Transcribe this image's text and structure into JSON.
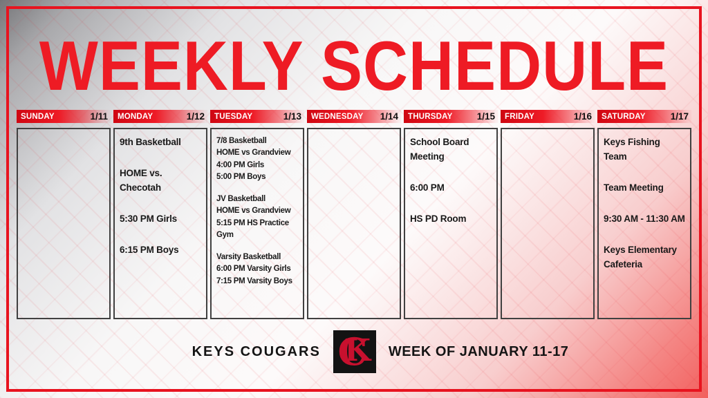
{
  "title": "WEEKLY SCHEDULE",
  "colors": {
    "accent_red": "#ee1b24",
    "header_bar_red": "#e8131f",
    "logo_red": "#c8102e",
    "text_dark": "#191919"
  },
  "days": [
    {
      "name": "SUNDAY",
      "date": "1/11",
      "events": []
    },
    {
      "name": "MONDAY",
      "date": "1/12",
      "events": [
        [
          "9th Basketball"
        ],
        [
          "HOME vs. Checotah"
        ],
        [
          "5:30 PM Girls"
        ],
        [
          "6:15 PM Boys"
        ]
      ]
    },
    {
      "name": "TUESDAY",
      "date": "1/13",
      "events": [
        [
          "7/8 Basketball",
          "HOME vs Grandview",
          "4:00 PM Girls",
          "5:00 PM Boys"
        ],
        [
          "JV Basketball",
          "HOME vs Grandview",
          "5:15 PM HS Practice Gym"
        ],
        [
          "Varsity Basketball",
          "6:00 PM Varsity Girls",
          "7:15 PM Varsity Boys"
        ]
      ]
    },
    {
      "name": "WEDNESDAY",
      "date": "1/14",
      "events": []
    },
    {
      "name": "THURSDAY",
      "date": "1/15",
      "events": [
        [
          "School Board Meeting"
        ],
        [
          "6:00 PM"
        ],
        [
          "HS PD Room"
        ]
      ]
    },
    {
      "name": "FRIDAY",
      "date": "1/16",
      "events": []
    },
    {
      "name": "SATURDAY",
      "date": "1/17",
      "events": [
        [
          "Keys Fishing Team"
        ],
        [
          "Team Meeting"
        ],
        [
          "9:30 AM - 11:30 AM"
        ],
        [
          "Keys Elementary Cafeteria"
        ]
      ]
    }
  ],
  "footer": {
    "team_name": "KEYS COUGARS",
    "week_label": "WEEK OF JANUARY 11-17",
    "logo": {
      "k": "K",
      "c": "C"
    }
  }
}
